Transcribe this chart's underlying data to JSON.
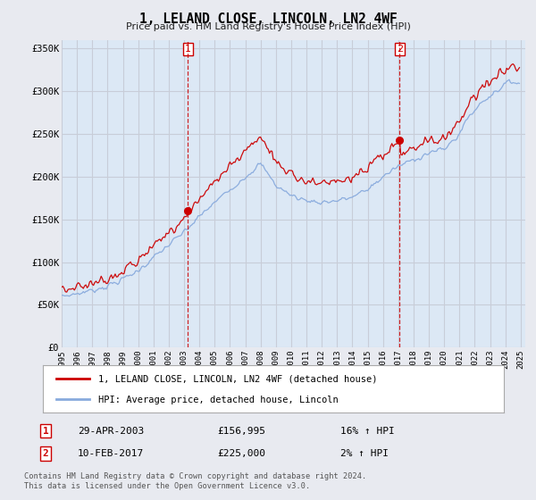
{
  "title": "1, LELAND CLOSE, LINCOLN, LN2 4WF",
  "subtitle": "Price paid vs. HM Land Registry's House Price Index (HPI)",
  "ylim": [
    0,
    360000
  ],
  "yticks": [
    0,
    50000,
    100000,
    150000,
    200000,
    250000,
    300000,
    350000
  ],
  "ytick_labels": [
    "£0",
    "£50K",
    "£100K",
    "£150K",
    "£200K",
    "£250K",
    "£300K",
    "£350K"
  ],
  "background_color": "#e8eaf0",
  "plot_bg_color": "#dce8f5",
  "grid_color": "#c8cdd8",
  "sale1_date": "29-APR-2003",
  "sale1_price": 156995,
  "sale1_hpi_text": "16% ↑ HPI",
  "sale2_date": "10-FEB-2017",
  "sale2_price": 225000,
  "sale2_hpi_text": "2% ↑ HPI",
  "legend_label1": "1, LELAND CLOSE, LINCOLN, LN2 4WF (detached house)",
  "legend_label2": "HPI: Average price, detached house, Lincoln",
  "footnote1": "Contains HM Land Registry data © Crown copyright and database right 2024.",
  "footnote2": "This data is licensed under the Open Government Licence v3.0.",
  "line_color_sale": "#cc0000",
  "line_color_hpi": "#88aadd",
  "sale1_year": 2003.29,
  "sale2_year": 2017.09
}
